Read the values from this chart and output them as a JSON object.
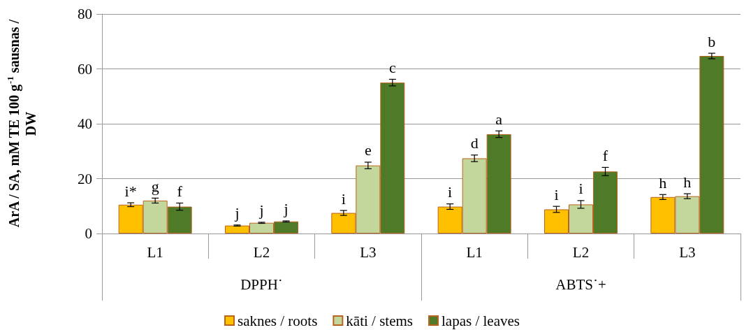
{
  "chart_data": {
    "type": "bar",
    "ylabel": "ArA / SA, mM TE 100 g$^{-1}$ sausnas / DW",
    "categories": [
      "L1",
      "L2",
      "L3",
      "L1",
      "L2",
      "L3"
    ],
    "annotations": [
      "DPPH˙",
      "ABTS˙+"
    ],
    "series": [
      {
        "name": "saknes / roots",
        "color": "#ffc000",
        "values": [
          10.5,
          2.9,
          7.5,
          9.8,
          8.8,
          13.3
        ],
        "errors": [
          0.7,
          0.2,
          0.9,
          1,
          1.1,
          0.9
        ],
        "value_labels": [
          "i*",
          "j",
          "i",
          "i",
          "i",
          "h"
        ]
      },
      {
        "name": "kāti / stems",
        "color": "#c3d69b",
        "values": [
          12,
          3.9,
          24.8,
          27.4,
          10.6,
          13.6
        ],
        "errors": [
          0.9,
          0.2,
          1.2,
          1.2,
          1.4,
          0.9
        ],
        "value_labels": [
          "g",
          "j",
          "e",
          "d",
          "i",
          "h"
        ]
      },
      {
        "name": "lapas / leaves",
        "color": "#4f7a28",
        "values": [
          9.8,
          4.4,
          55,
          36.2,
          22.6,
          64.7
        ],
        "errors": [
          1.3,
          0.2,
          1.2,
          1.2,
          1.5,
          1
        ],
        "value_labels": [
          "f",
          "j",
          "c",
          "a",
          "f",
          "b"
        ]
      }
    ],
    "ylim": [
      0,
      80
    ],
    "yticks": [
      0,
      20,
      40,
      60,
      80
    ],
    "grid": "y",
    "legend": "bottom"
  }
}
